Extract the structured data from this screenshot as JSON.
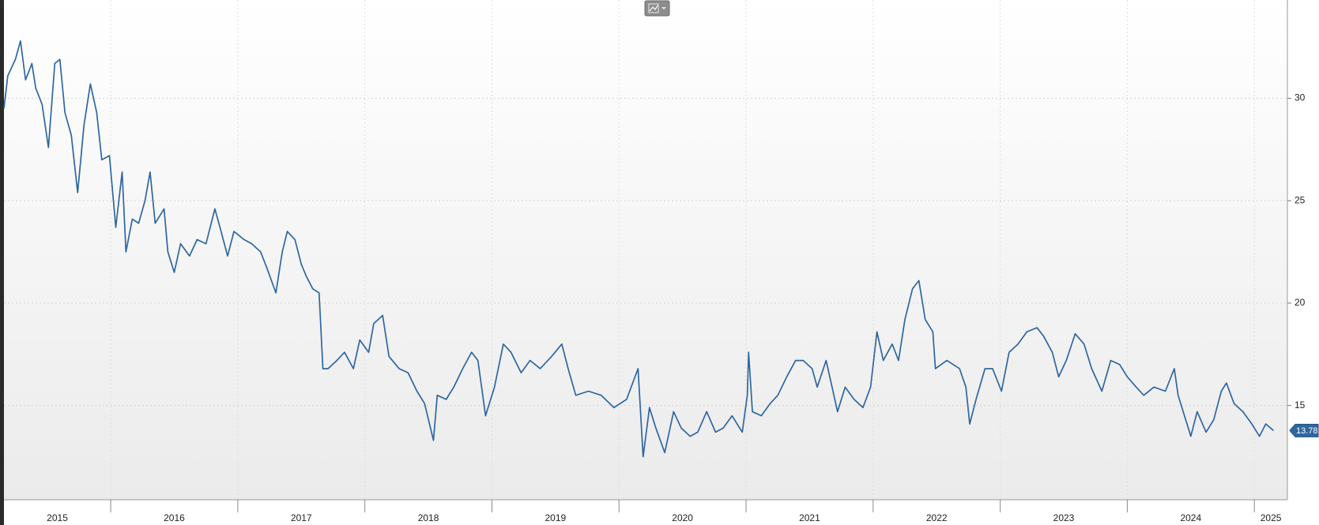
{
  "chart_data": {
    "type": "line",
    "x": [
      2015.16,
      2015.19,
      2015.25,
      2015.29,
      2015.33,
      2015.38,
      2015.41,
      2015.46,
      2015.51,
      2015.56,
      2015.6,
      2015.64,
      2015.69,
      2015.74,
      2015.79,
      2015.84,
      2015.89,
      2015.93,
      2015.99,
      2016.04,
      2016.09,
      2016.12,
      2016.17,
      2016.22,
      2016.27,
      2016.31,
      2016.35,
      2016.42,
      2016.45,
      2016.5,
      2016.55,
      2016.62,
      2016.68,
      2016.75,
      2016.82,
      2016.86,
      2016.92,
      2016.97,
      2017.05,
      2017.11,
      2017.18,
      2017.23,
      2017.3,
      2017.35,
      2017.39,
      2017.45,
      2017.5,
      2017.54,
      2017.59,
      2017.64,
      2017.67,
      2017.71,
      2017.78,
      2017.84,
      2017.91,
      2017.96,
      2018.03,
      2018.07,
      2018.14,
      2018.19,
      2018.27,
      2018.34,
      2018.41,
      2018.47,
      2018.54,
      2018.57,
      2018.64,
      2018.7,
      2018.77,
      2018.84,
      2018.89,
      2018.95,
      2019.02,
      2019.09,
      2019.15,
      2019.23,
      2019.3,
      2019.38,
      2019.47,
      2019.55,
      2019.6,
      2019.66,
      2019.76,
      2019.86,
      2019.96,
      2020.06,
      2020.15,
      2020.19,
      2020.24,
      2020.29,
      2020.36,
      2020.43,
      2020.49,
      2020.56,
      2020.62,
      2020.69,
      2020.76,
      2020.82,
      2020.89,
      2020.97,
      2021.01,
      2021.02,
      2021.05,
      2021.12,
      2021.19,
      2021.25,
      2021.32,
      2021.39,
      2021.45,
      2021.52,
      2021.56,
      2021.63,
      2021.72,
      2021.78,
      2021.85,
      2021.92,
      2021.98,
      2022.03,
      2022.08,
      2022.15,
      2022.2,
      2022.25,
      2022.31,
      2022.36,
      2022.41,
      2022.47,
      2022.49,
      2022.58,
      2022.68,
      2022.73,
      2022.76,
      2022.81,
      2022.88,
      2022.94,
      2023.01,
      2023.07,
      2023.14,
      2023.21,
      2023.29,
      2023.34,
      2023.41,
      2023.46,
      2023.52,
      2023.59,
      2023.66,
      2023.72,
      2023.8,
      2023.87,
      2023.94,
      2024.0,
      2024.07,
      2024.13,
      2024.21,
      2024.3,
      2024.37,
      2024.4,
      2024.45,
      2024.5,
      2024.55,
      2024.62,
      2024.68,
      2024.74,
      2024.78,
      2024.84,
      2024.91,
      2024.98,
      2025.04,
      2025.09,
      2025.15
    ],
    "values": [
      29.5,
      31.1,
      31.9,
      32.8,
      30.9,
      31.7,
      30.5,
      29.7,
      27.6,
      31.7,
      31.9,
      29.3,
      28.2,
      25.4,
      28.7,
      30.7,
      29.3,
      27.0,
      27.2,
      23.7,
      26.4,
      22.5,
      24.1,
      23.9,
      25.0,
      26.4,
      23.9,
      24.6,
      22.5,
      21.5,
      22.9,
      22.3,
      23.1,
      22.9,
      24.6,
      23.7,
      22.3,
      23.5,
      23.1,
      22.9,
      22.5,
      21.7,
      20.5,
      22.5,
      23.5,
      23.1,
      21.9,
      21.3,
      20.7,
      20.5,
      16.8,
      16.8,
      17.2,
      17.6,
      16.8,
      18.2,
      17.6,
      19.0,
      19.4,
      17.4,
      16.8,
      16.6,
      15.7,
      15.1,
      13.3,
      15.5,
      15.3,
      15.9,
      16.8,
      17.6,
      17.2,
      14.5,
      15.9,
      18.0,
      17.6,
      16.6,
      17.2,
      16.8,
      17.4,
      18.0,
      16.8,
      15.5,
      15.7,
      15.5,
      14.9,
      15.3,
      16.8,
      12.5,
      14.9,
      13.9,
      12.7,
      14.7,
      13.9,
      13.5,
      13.7,
      14.7,
      13.7,
      13.9,
      14.5,
      13.7,
      15.5,
      17.6,
      14.7,
      14.5,
      15.1,
      15.5,
      16.4,
      17.2,
      17.2,
      16.8,
      15.9,
      17.2,
      14.7,
      15.9,
      15.3,
      14.9,
      15.9,
      18.6,
      17.2,
      18.0,
      17.2,
      19.2,
      20.7,
      21.1,
      19.2,
      18.6,
      16.8,
      17.2,
      16.8,
      15.9,
      14.1,
      15.3,
      16.8,
      16.8,
      15.7,
      17.6,
      18.0,
      18.6,
      18.8,
      18.4,
      17.6,
      16.4,
      17.2,
      18.5,
      18.0,
      16.8,
      15.7,
      17.2,
      17.0,
      16.4,
      15.9,
      15.5,
      15.9,
      15.7,
      16.8,
      15.5,
      14.5,
      13.5,
      14.7,
      13.7,
      14.3,
      15.7,
      16.1,
      15.1,
      14.7,
      14.1,
      13.5,
      14.1,
      13.78
    ],
    "color": "#2e67a0",
    "last_value_label": "13.78",
    "xlim": [
      2015.16,
      2025.26
    ],
    "xticks": [
      2015,
      2016,
      2017,
      2018,
      2019,
      2020,
      2021,
      2022,
      2023,
      2024,
      2025
    ],
    "ylim": [
      10.4,
      34.8
    ],
    "yticks": [
      15,
      20,
      25,
      30
    ],
    "grid": true
  }
}
